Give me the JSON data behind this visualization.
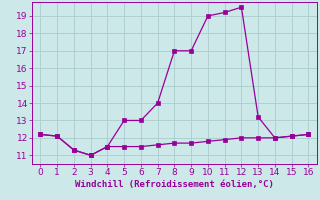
{
  "xlabel": "Windchill (Refroidissement éolien,°C)",
  "line1_x": [
    0,
    1,
    2,
    3,
    4,
    5,
    6,
    7,
    8,
    9,
    10,
    11,
    12,
    13,
    14,
    15,
    16
  ],
  "line1_y": [
    12.2,
    12.1,
    11.3,
    11.0,
    11.5,
    11.5,
    11.5,
    11.6,
    11.7,
    11.7,
    11.8,
    11.9,
    12.0,
    12.0,
    12.0,
    12.1,
    12.2
  ],
  "line2_x": [
    0,
    1,
    2,
    3,
    4,
    5,
    6,
    7,
    8,
    9,
    10,
    11,
    12,
    13,
    14,
    15,
    16
  ],
  "line2_y": [
    12.2,
    12.1,
    11.3,
    11.0,
    11.5,
    13.0,
    13.0,
    14.0,
    17.0,
    17.0,
    19.0,
    19.2,
    19.5,
    13.2,
    12.0,
    12.1,
    12.2
  ],
  "line_color": "#990099",
  "bg_color": "#cce8e8",
  "grid_color": "#aacccc",
  "xlim": [
    -0.5,
    16.5
  ],
  "ylim": [
    10.5,
    19.8
  ],
  "yticks": [
    11,
    12,
    13,
    14,
    15,
    16,
    17,
    18,
    19
  ],
  "xticks": [
    0,
    1,
    2,
    3,
    4,
    5,
    6,
    7,
    8,
    9,
    10,
    11,
    12,
    13,
    14,
    15,
    16
  ],
  "tick_fontsize": 6.5,
  "label_fontsize": 6.5,
  "marker_size": 2.2,
  "line_width": 0.9
}
